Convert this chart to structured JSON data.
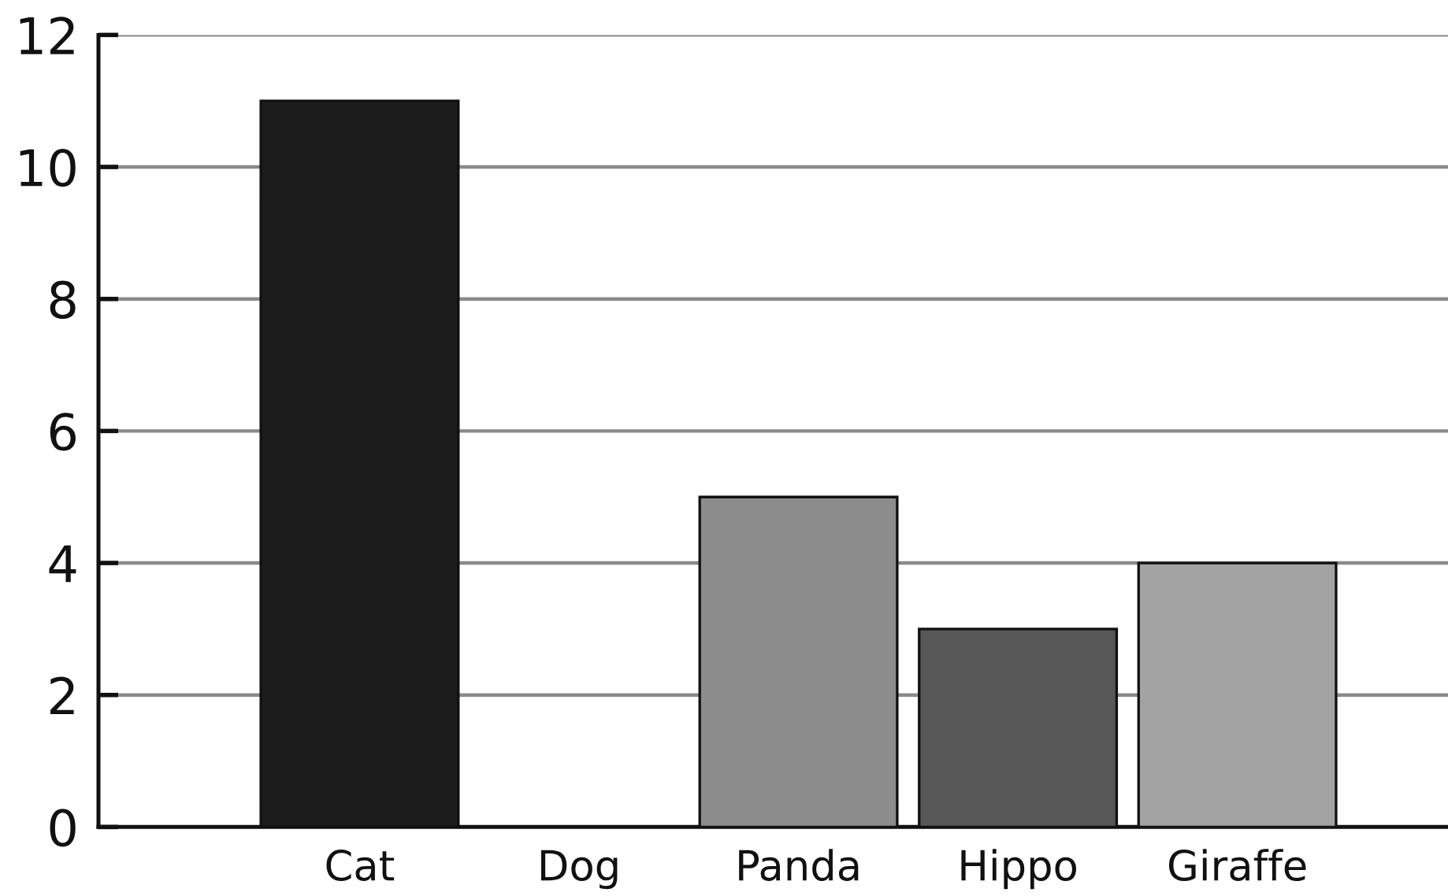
{
  "chart_data": {
    "type": "bar",
    "categories": [
      "Cat",
      "Dog",
      "Panda",
      "Hippo",
      "Giraffe"
    ],
    "values": [
      11,
      0,
      5,
      3,
      4
    ],
    "colors": [
      "#1c1c1c",
      "#7a7a7a",
      "#8c8c8c",
      "#575757",
      "#a3a3a3"
    ],
    "ylim": [
      0,
      12
    ],
    "yticks": [
      0,
      2,
      4,
      6,
      8,
      10,
      12
    ],
    "grid": "y",
    "legend": false
  }
}
